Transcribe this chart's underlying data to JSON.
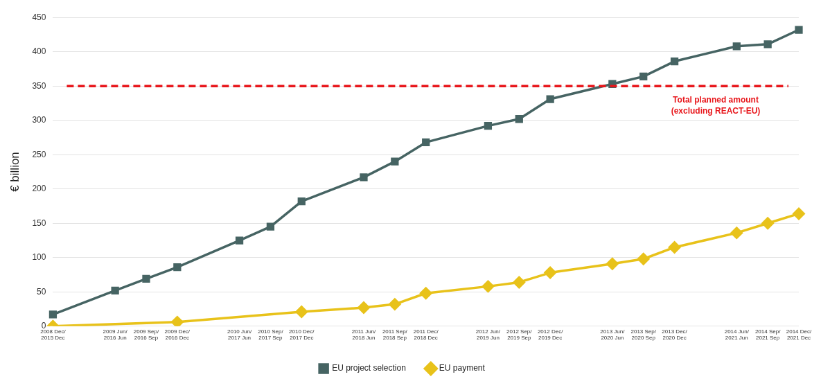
{
  "chart_data": {
    "type": "line",
    "ylabel": "€ billion",
    "categories": [
      "2008 Dec/\n2015 Dec",
      null,
      "2009 Jun/\n2016 Jun",
      "2009 Sep/\n2016 Sep",
      "2009 Dec/\n2016 Dec",
      null,
      "2010 Jun/\n2017 Jun",
      "2010 Sep/\n2017 Sep",
      "2010 Dec/\n2017 Dec",
      null,
      "2011 Jun/\n2018 Jun",
      "2011 Sep/\n2018 Sep",
      "2011 Dec/\n2018 Dec",
      null,
      "2012 Jun/\n2019 Jun",
      "2012 Sep/\n2019 Sep",
      "2012 Dec/\n2019 Dec",
      null,
      "2013 Jun/\n2020 Jun",
      "2013 Sep/\n2020 Sep",
      "2013 Dec/\n2020 Dec",
      null,
      "2014 Jun/\n2021 Jun",
      "2014 Sep/\n2021 Sep",
      "2014 Dec/\n2021 Dec"
    ],
    "series": [
      {
        "name": "EU project selection",
        "color": "#466463",
        "marker": "square",
        "values": [
          17,
          null,
          52,
          69,
          86,
          null,
          125,
          145,
          182,
          null,
          217,
          240,
          268,
          null,
          292,
          302,
          331,
          null,
          353,
          364,
          386,
          null,
          408,
          411,
          432
        ]
      },
      {
        "name": "EU payment",
        "color": "#e8c21a",
        "marker": "diamond",
        "values": [
          0,
          null,
          null,
          null,
          6,
          null,
          null,
          null,
          21,
          null,
          27,
          32,
          48,
          null,
          58,
          64,
          78,
          null,
          91,
          98,
          115,
          null,
          136,
          150,
          164
        ]
      }
    ],
    "ylim": [
      0,
      450
    ],
    "yticks": [
      0,
      50,
      100,
      150,
      200,
      250,
      300,
      350,
      400,
      450
    ],
    "grid": "y",
    "legend": "bottom",
    "line_style": "solid",
    "ref_lines": [
      {
        "axis": "y",
        "value": 350,
        "label": "Total planned amount\n(excluding REACT-EU)",
        "color": "#e8161b",
        "line_style": "dashed"
      }
    ]
  }
}
